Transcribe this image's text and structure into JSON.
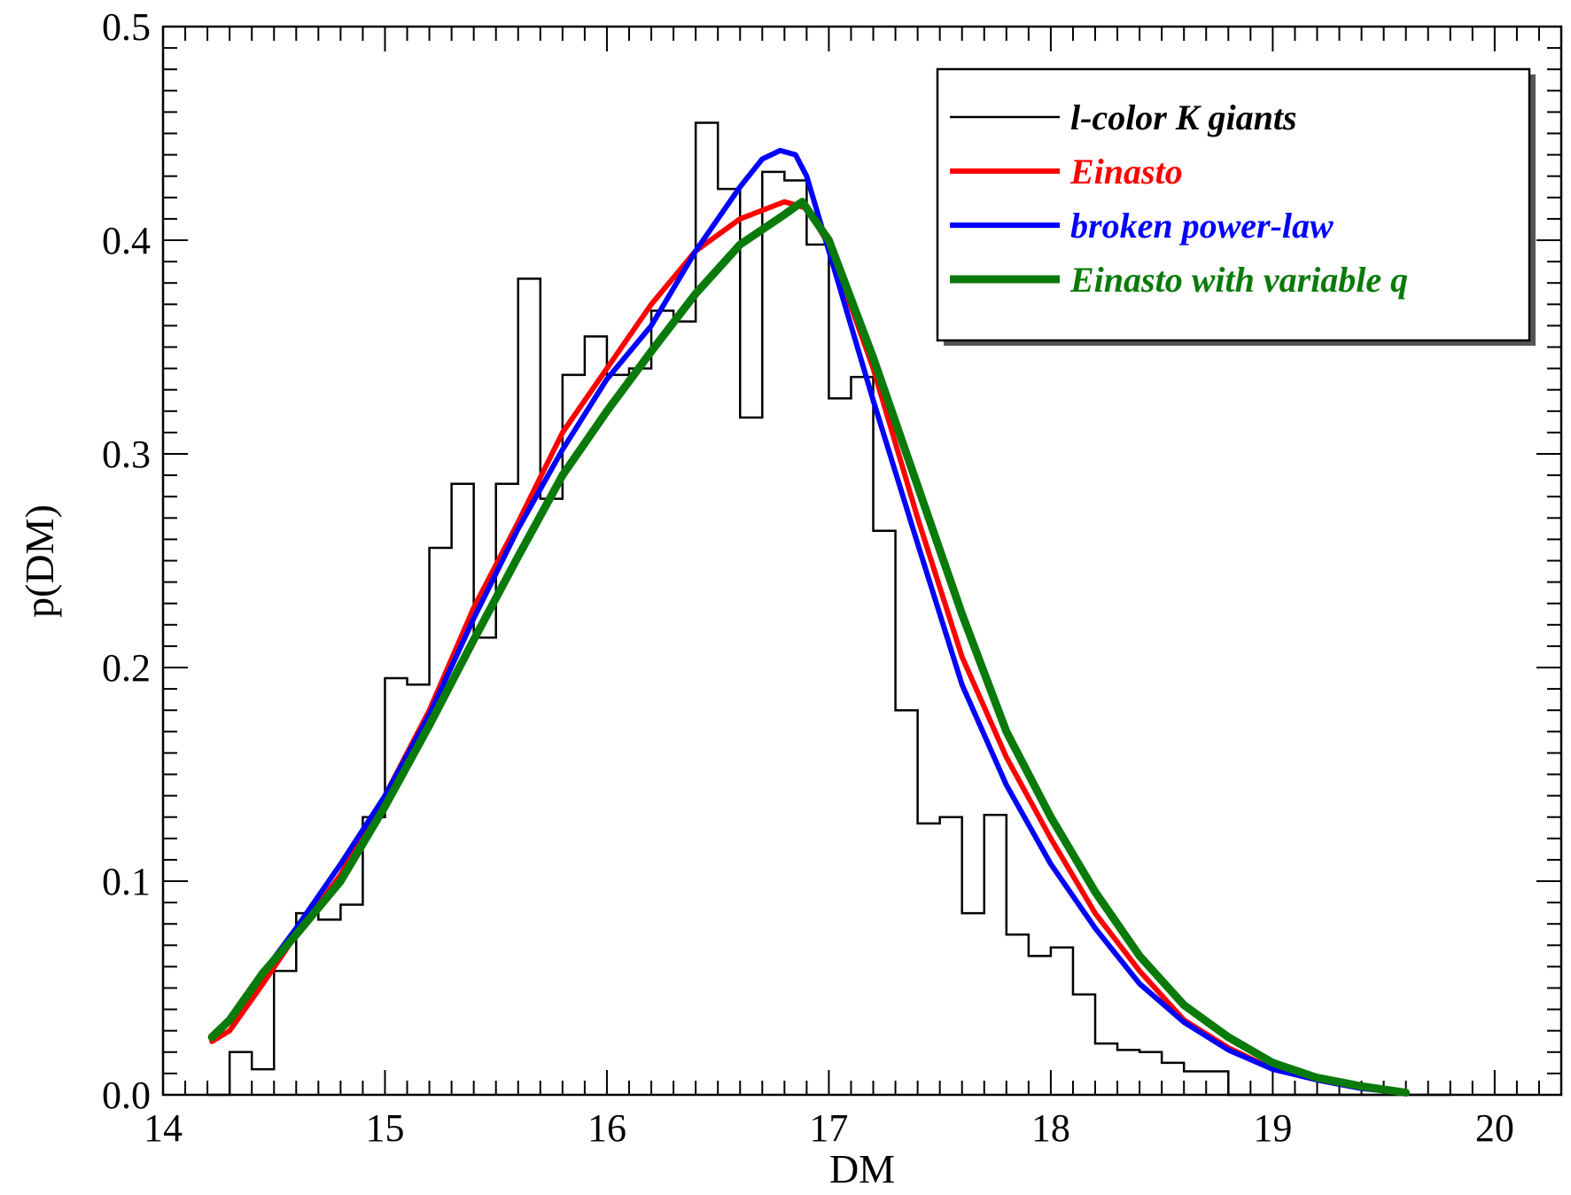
{
  "chart_data": {
    "type": "line",
    "xlabel": "DM",
    "ylabel": "p(DM)",
    "xlim": [
      14,
      20.3
    ],
    "ylim": [
      0,
      0.5
    ],
    "x_ticks": [
      "14",
      "15",
      "16",
      "17",
      "18",
      "19",
      "20"
    ],
    "y_ticks": [
      "0.0",
      "0.1",
      "0.2",
      "0.3",
      "0.4",
      "0.5"
    ],
    "grid": false,
    "legend_position": "top-right",
    "histogram": {
      "name": "l-color K giants",
      "color": "#000000",
      "bin_width": 0.1,
      "bin_starts": [
        14.2,
        14.3,
        14.4,
        14.5,
        14.6,
        14.7,
        14.8,
        14.9,
        15.0,
        15.1,
        15.2,
        15.3,
        15.4,
        15.5,
        15.6,
        15.7,
        15.8,
        15.9,
        16.0,
        16.1,
        16.2,
        16.3,
        16.4,
        16.5,
        16.6,
        16.7,
        16.8,
        16.9,
        17.0,
        17.1,
        17.2,
        17.3,
        17.4,
        17.5,
        17.6,
        17.7,
        17.8,
        17.9,
        18.0,
        18.1,
        18.2,
        18.3,
        18.4,
        18.5,
        18.6,
        18.7,
        18.8,
        18.9,
        19.0,
        19.1,
        19.2,
        19.3,
        19.4,
        19.5,
        19.6,
        19.7
      ],
      "values": [
        0.0,
        0.02,
        0.012,
        0.058,
        0.085,
        0.082,
        0.089,
        0.13,
        0.195,
        0.192,
        0.256,
        0.286,
        0.214,
        0.286,
        0.382,
        0.279,
        0.337,
        0.355,
        0.337,
        0.34,
        0.367,
        0.362,
        0.455,
        0.424,
        0.317,
        0.432,
        0.428,
        0.398,
        0.326,
        0.336,
        0.264,
        0.18,
        0.127,
        0.13,
        0.085,
        0.131,
        0.075,
        0.065,
        0.069,
        0.047,
        0.024,
        0.021,
        0.02,
        0.015,
        0.011,
        0.011,
        0.0,
        0.0,
        0.0,
        0.0,
        0.0,
        0.0,
        0.0,
        0.0,
        0.0,
        0.0
      ]
    },
    "series": [
      {
        "name": "Einasto",
        "color": "#ff0000",
        "x": [
          14.22,
          14.3,
          14.45,
          14.6,
          14.8,
          15.0,
          15.2,
          15.4,
          15.6,
          15.8,
          16.0,
          16.2,
          16.4,
          16.6,
          16.8,
          16.9,
          17.0,
          17.2,
          17.4,
          17.6,
          17.8,
          18.0,
          18.2,
          18.4,
          18.6,
          18.8,
          19.0,
          19.2,
          19.4,
          19.6
        ],
        "y": [
          0.025,
          0.03,
          0.052,
          0.075,
          0.103,
          0.14,
          0.18,
          0.228,
          0.268,
          0.31,
          0.34,
          0.37,
          0.395,
          0.41,
          0.418,
          0.415,
          0.398,
          0.34,
          0.27,
          0.205,
          0.158,
          0.12,
          0.085,
          0.058,
          0.035,
          0.022,
          0.012,
          0.007,
          0.003,
          0.001
        ]
      },
      {
        "name": "broken power-law",
        "color": "#0000ff",
        "x": [
          14.22,
          14.3,
          14.45,
          14.6,
          14.8,
          15.0,
          15.2,
          15.4,
          15.6,
          15.8,
          16.0,
          16.2,
          16.4,
          16.6,
          16.7,
          16.78,
          16.85,
          16.9,
          17.0,
          17.2,
          17.4,
          17.6,
          17.8,
          18.0,
          18.2,
          18.4,
          18.6,
          18.8,
          19.0,
          19.2,
          19.4,
          19.6
        ],
        "y": [
          0.027,
          0.035,
          0.057,
          0.078,
          0.108,
          0.14,
          0.178,
          0.223,
          0.265,
          0.302,
          0.335,
          0.36,
          0.395,
          0.425,
          0.438,
          0.442,
          0.44,
          0.43,
          0.395,
          0.325,
          0.258,
          0.192,
          0.145,
          0.108,
          0.078,
          0.052,
          0.034,
          0.021,
          0.012,
          0.007,
          0.003,
          0.001
        ]
      },
      {
        "name": "Einasto with variable q",
        "color": "#0a7a0a",
        "x": [
          14.22,
          14.3,
          14.45,
          14.6,
          14.8,
          15.0,
          15.2,
          15.4,
          15.6,
          15.8,
          16.0,
          16.2,
          16.4,
          16.6,
          16.8,
          16.88,
          17.0,
          17.2,
          17.4,
          17.6,
          17.8,
          18.0,
          18.2,
          18.4,
          18.6,
          18.8,
          19.0,
          19.2,
          19.4,
          19.6
        ],
        "y": [
          0.027,
          0.035,
          0.057,
          0.075,
          0.1,
          0.135,
          0.173,
          0.213,
          0.252,
          0.29,
          0.32,
          0.348,
          0.375,
          0.398,
          0.412,
          0.418,
          0.4,
          0.345,
          0.285,
          0.225,
          0.17,
          0.13,
          0.095,
          0.065,
          0.042,
          0.027,
          0.015,
          0.008,
          0.004,
          0.001
        ]
      }
    ]
  }
}
